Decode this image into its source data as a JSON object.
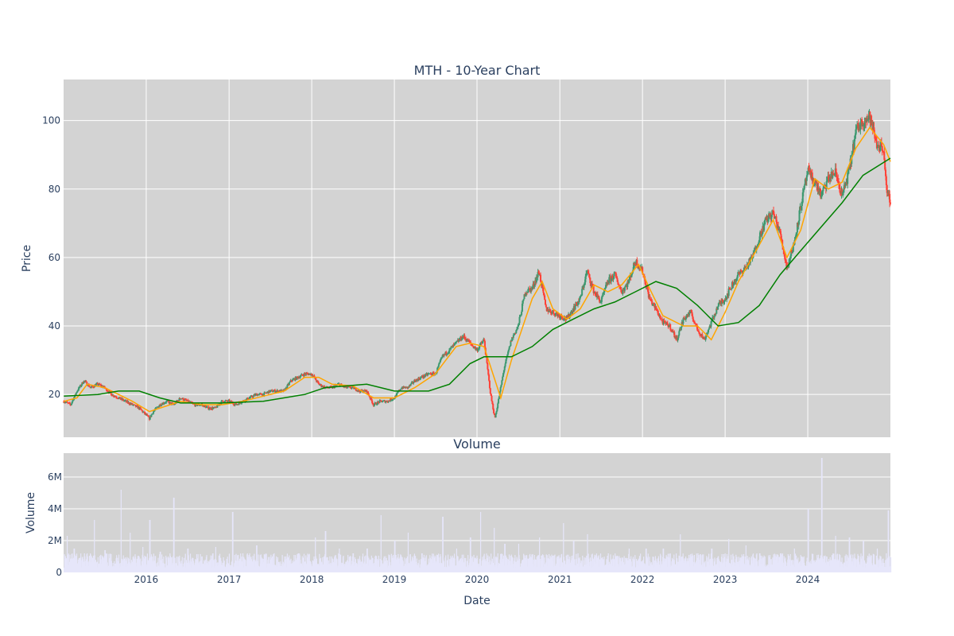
{
  "chart_data": [
    {
      "type": "candlestick",
      "title": "MTH - 10-Year Chart",
      "xlabel": "",
      "ylabel": "Price",
      "x_range": [
        "2015-01-01",
        "2024-12-31"
      ],
      "ylim": [
        7.5,
        112
      ],
      "y_ticks": [
        20,
        40,
        60,
        80,
        100
      ],
      "x_ticks": [
        "2016-01-01",
        "2017-01-01",
        "2018-01-01",
        "2019-01-01",
        "2020-01-01",
        "2021-01-01",
        "2022-01-01",
        "2023-01-01",
        "2024-01-01"
      ],
      "grid": true,
      "background": "#d3d3d3",
      "up_color": "#3d9970",
      "down_color": "#ff4136",
      "close_approx": [
        [
          "2015-01-02",
          18
        ],
        [
          "2015-02-01",
          17
        ],
        [
          "2015-03-01",
          21
        ],
        [
          "2015-04-01",
          24
        ],
        [
          "2015-05-01",
          22
        ],
        [
          "2015-06-01",
          23
        ],
        [
          "2015-07-01",
          22
        ],
        [
          "2015-08-01",
          20
        ],
        [
          "2015-09-01",
          19
        ],
        [
          "2015-10-01",
          18
        ],
        [
          "2015-11-01",
          17
        ],
        [
          "2015-12-01",
          16
        ],
        [
          "2016-01-15",
          13
        ],
        [
          "2016-02-01",
          15
        ],
        [
          "2016-03-01",
          17
        ],
        [
          "2016-04-01",
          18
        ],
        [
          "2016-05-01",
          17
        ],
        [
          "2016-06-01",
          19
        ],
        [
          "2016-07-01",
          18
        ],
        [
          "2016-08-01",
          17
        ],
        [
          "2016-09-01",
          17
        ],
        [
          "2016-10-01",
          16
        ],
        [
          "2016-11-01",
          16
        ],
        [
          "2016-12-01",
          18
        ],
        [
          "2017-01-01",
          18
        ],
        [
          "2017-02-01",
          17
        ],
        [
          "2017-03-01",
          18
        ],
        [
          "2017-04-01",
          19
        ],
        [
          "2017-05-01",
          20
        ],
        [
          "2017-06-01",
          20
        ],
        [
          "2017-07-01",
          21
        ],
        [
          "2017-08-01",
          21
        ],
        [
          "2017-09-01",
          21
        ],
        [
          "2017-10-01",
          24
        ],
        [
          "2017-11-01",
          25
        ],
        [
          "2017-12-01",
          26
        ],
        [
          "2018-01-01",
          26
        ],
        [
          "2018-02-01",
          23
        ],
        [
          "2018-03-01",
          22
        ],
        [
          "2018-04-01",
          22
        ],
        [
          "2018-05-01",
          23
        ],
        [
          "2018-06-01",
          22
        ],
        [
          "2018-07-01",
          22
        ],
        [
          "2018-08-01",
          21
        ],
        [
          "2018-09-01",
          21
        ],
        [
          "2018-10-01",
          17
        ],
        [
          "2018-11-01",
          18
        ],
        [
          "2018-12-01",
          18
        ],
        [
          "2019-01-01",
          19
        ],
        [
          "2019-02-01",
          22
        ],
        [
          "2019-03-01",
          22
        ],
        [
          "2019-04-01",
          24
        ],
        [
          "2019-05-01",
          25
        ],
        [
          "2019-06-01",
          26
        ],
        [
          "2019-07-01",
          26
        ],
        [
          "2019-08-01",
          31
        ],
        [
          "2019-09-01",
          33
        ],
        [
          "2019-10-01",
          35
        ],
        [
          "2019-11-01",
          37
        ],
        [
          "2019-12-01",
          35
        ],
        [
          "2020-01-01",
          33
        ],
        [
          "2020-02-01",
          36
        ],
        [
          "2020-03-01",
          20
        ],
        [
          "2020-03-20",
          13
        ],
        [
          "2020-04-01",
          17
        ],
        [
          "2020-05-01",
          28
        ],
        [
          "2020-06-01",
          36
        ],
        [
          "2020-07-01",
          40
        ],
        [
          "2020-08-01",
          50
        ],
        [
          "2020-09-01",
          51
        ],
        [
          "2020-10-01",
          56
        ],
        [
          "2020-11-01",
          45
        ],
        [
          "2020-12-01",
          44
        ],
        [
          "2021-01-01",
          43
        ],
        [
          "2021-02-01",
          42
        ],
        [
          "2021-03-01",
          45
        ],
        [
          "2021-04-01",
          48
        ],
        [
          "2021-05-01",
          56
        ],
        [
          "2021-06-01",
          50
        ],
        [
          "2021-07-01",
          47
        ],
        [
          "2021-08-01",
          53
        ],
        [
          "2021-09-01",
          55
        ],
        [
          "2021-10-01",
          50
        ],
        [
          "2021-11-01",
          53
        ],
        [
          "2021-12-01",
          59
        ],
        [
          "2022-01-01",
          56
        ],
        [
          "2022-02-01",
          48
        ],
        [
          "2022-03-01",
          45
        ],
        [
          "2022-04-01",
          41
        ],
        [
          "2022-05-01",
          40
        ],
        [
          "2022-06-01",
          36
        ],
        [
          "2022-07-01",
          42
        ],
        [
          "2022-08-01",
          44
        ],
        [
          "2022-09-01",
          39
        ],
        [
          "2022-10-01",
          36
        ],
        [
          "2022-11-01",
          41
        ],
        [
          "2022-12-01",
          46
        ],
        [
          "2023-01-01",
          48
        ],
        [
          "2023-02-01",
          52
        ],
        [
          "2023-03-01",
          55
        ],
        [
          "2023-04-01",
          57
        ],
        [
          "2023-05-01",
          60
        ],
        [
          "2023-06-01",
          66
        ],
        [
          "2023-07-01",
          71
        ],
        [
          "2023-08-01",
          73
        ],
        [
          "2023-09-01",
          67
        ],
        [
          "2023-10-01",
          57
        ],
        [
          "2023-11-01",
          64
        ],
        [
          "2023-12-01",
          75
        ],
        [
          "2024-01-01",
          85
        ],
        [
          "2024-02-01",
          82
        ],
        [
          "2024-03-01",
          78
        ],
        [
          "2024-04-01",
          83
        ],
        [
          "2024-05-01",
          85
        ],
        [
          "2024-06-01",
          78
        ],
        [
          "2024-07-01",
          85
        ],
        [
          "2024-08-01",
          97
        ],
        [
          "2024-09-01",
          100
        ],
        [
          "2024-10-01",
          101
        ],
        [
          "2024-11-01",
          93
        ],
        [
          "2024-12-01",
          92
        ],
        [
          "2024-12-15",
          78
        ],
        [
          "2024-12-31",
          77
        ]
      ],
      "overlays": [
        {
          "kind": "moving_average_short",
          "color": "#ffa500",
          "values": [
            [
              "2015-01-02",
              18
            ],
            [
              "2015-03-01",
              19
            ],
            [
              "2015-04-15",
              23
            ],
            [
              "2015-07-01",
              22
            ],
            [
              "2015-09-01",
              20
            ],
            [
              "2015-11-01",
              18
            ],
            [
              "2016-01-15",
              15
            ],
            [
              "2016-03-01",
              16
            ],
            [
              "2016-06-01",
              18
            ],
            [
              "2016-09-01",
              17
            ],
            [
              "2016-12-01",
              17
            ],
            [
              "2017-03-01",
              18
            ],
            [
              "2017-06-01",
              19.5
            ],
            [
              "2017-09-01",
              21
            ],
            [
              "2017-12-01",
              25
            ],
            [
              "2018-02-01",
              25
            ],
            [
              "2018-04-01",
              23
            ],
            [
              "2018-07-01",
              22.5
            ],
            [
              "2018-10-01",
              19
            ],
            [
              "2019-01-01",
              19
            ],
            [
              "2019-04-01",
              22
            ],
            [
              "2019-07-01",
              26
            ],
            [
              "2019-10-01",
              34
            ],
            [
              "2019-12-01",
              35
            ],
            [
              "2020-02-01",
              34
            ],
            [
              "2020-04-15",
              19
            ],
            [
              "2020-06-01",
              30
            ],
            [
              "2020-09-01",
              48
            ],
            [
              "2020-10-15",
              53
            ],
            [
              "2020-12-01",
              45
            ],
            [
              "2021-02-01",
              42
            ],
            [
              "2021-04-01",
              45
            ],
            [
              "2021-06-01",
              52
            ],
            [
              "2021-08-01",
              50
            ],
            [
              "2021-10-01",
              52
            ],
            [
              "2021-12-15",
              58
            ],
            [
              "2022-02-01",
              51
            ],
            [
              "2022-04-01",
              43
            ],
            [
              "2022-07-01",
              40
            ],
            [
              "2022-09-01",
              40
            ],
            [
              "2022-11-01",
              36
            ],
            [
              "2023-01-01",
              44
            ],
            [
              "2023-03-01",
              53
            ],
            [
              "2023-05-01",
              60
            ],
            [
              "2023-08-01",
              71
            ],
            [
              "2023-10-01",
              60
            ],
            [
              "2023-12-01",
              68
            ],
            [
              "2024-02-01",
              83
            ],
            [
              "2024-04-01",
              80
            ],
            [
              "2024-06-01",
              82
            ],
            [
              "2024-08-01",
              92
            ],
            [
              "2024-10-01",
              98
            ],
            [
              "2024-12-01",
              93
            ],
            [
              "2024-12-31",
              88
            ]
          ]
        },
        {
          "kind": "moving_average_long",
          "color": "#008000",
          "values": [
            [
              "2015-01-02",
              19.5
            ],
            [
              "2015-06-01",
              20
            ],
            [
              "2015-09-01",
              21
            ],
            [
              "2015-12-01",
              21
            ],
            [
              "2016-03-01",
              19
            ],
            [
              "2016-06-01",
              17.5
            ],
            [
              "2016-12-01",
              17.5
            ],
            [
              "2017-06-01",
              18
            ],
            [
              "2017-12-01",
              20
            ],
            [
              "2018-03-01",
              22
            ],
            [
              "2018-09-01",
              23
            ],
            [
              "2019-01-01",
              21
            ],
            [
              "2019-06-01",
              21
            ],
            [
              "2019-09-01",
              23
            ],
            [
              "2019-12-01",
              29
            ],
            [
              "2020-02-01",
              31
            ],
            [
              "2020-06-01",
              31
            ],
            [
              "2020-09-01",
              34
            ],
            [
              "2020-12-01",
              39
            ],
            [
              "2021-03-01",
              42
            ],
            [
              "2021-06-01",
              45
            ],
            [
              "2021-09-01",
              47
            ],
            [
              "2021-12-01",
              50
            ],
            [
              "2022-03-01",
              53
            ],
            [
              "2022-06-01",
              51
            ],
            [
              "2022-09-01",
              46
            ],
            [
              "2022-12-01",
              40
            ],
            [
              "2023-03-01",
              41
            ],
            [
              "2023-06-01",
              46
            ],
            [
              "2023-09-01",
              55
            ],
            [
              "2023-12-01",
              62
            ],
            [
              "2024-03-01",
              69
            ],
            [
              "2024-06-01",
              76
            ],
            [
              "2024-09-01",
              84
            ],
            [
              "2024-12-31",
              89
            ]
          ]
        }
      ]
    },
    {
      "type": "bar",
      "title": "Volume",
      "xlabel": "Date",
      "ylabel": "Volume",
      "ylim": [
        0,
        7500000
      ],
      "y_ticks": [
        0,
        2000000,
        4000000,
        6000000
      ],
      "y_tick_labels": [
        "0",
        "2M",
        "4M",
        "6M"
      ],
      "x_tick_labels": [
        "2016",
        "2017",
        "2018",
        "2019",
        "2020",
        "2021",
        "2022",
        "2023",
        "2024"
      ],
      "bar_color": "#e6e6fa",
      "background": "#d3d3d3",
      "grid": true,
      "values_approx": [
        [
          "2015-01-15",
          2300000
        ],
        [
          "2015-02-15",
          1500000
        ],
        [
          "2015-04-01",
          1200000
        ],
        [
          "2015-05-15",
          3300000
        ],
        [
          "2015-07-01",
          1400000
        ],
        [
          "2015-09-10",
          5200000
        ],
        [
          "2015-10-20",
          2500000
        ],
        [
          "2015-12-15",
          1600000
        ],
        [
          "2016-01-15",
          3300000
        ],
        [
          "2016-03-01",
          1300000
        ],
        [
          "2016-04-30",
          4700000
        ],
        [
          "2016-07-01",
          1500000
        ],
        [
          "2016-09-01",
          1000000
        ],
        [
          "2016-11-01",
          1600000
        ],
        [
          "2017-01-15",
          3800000
        ],
        [
          "2017-03-01",
          1200000
        ],
        [
          "2017-05-01",
          1700000
        ],
        [
          "2017-07-01",
          800000
        ],
        [
          "2017-09-01",
          1000000
        ],
        [
          "2017-11-01",
          1200000
        ],
        [
          "2018-01-15",
          2200000
        ],
        [
          "2018-03-01",
          2600000
        ],
        [
          "2018-05-01",
          1500000
        ],
        [
          "2018-07-01",
          1200000
        ],
        [
          "2018-09-01",
          1500000
        ],
        [
          "2018-11-01",
          3600000
        ],
        [
          "2019-01-01",
          2000000
        ],
        [
          "2019-03-01",
          2500000
        ],
        [
          "2019-05-01",
          1200000
        ],
        [
          "2019-08-01",
          3500000
        ],
        [
          "2019-10-01",
          1500000
        ],
        [
          "2019-12-01",
          2200000
        ],
        [
          "2020-01-15",
          3800000
        ],
        [
          "2020-03-15",
          2800000
        ],
        [
          "2020-05-01",
          1800000
        ],
        [
          "2020-07-01",
          1800000
        ],
        [
          "2020-10-01",
          2200000
        ],
        [
          "2021-01-15",
          3100000
        ],
        [
          "2021-03-01",
          2000000
        ],
        [
          "2021-05-01",
          2400000
        ],
        [
          "2021-08-01",
          1200000
        ],
        [
          "2021-11-01",
          1500000
        ],
        [
          "2022-01-15",
          1500000
        ],
        [
          "2022-04-01",
          1500000
        ],
        [
          "2022-06-15",
          2400000
        ],
        [
          "2022-09-01",
          1200000
        ],
        [
          "2022-11-01",
          1500000
        ],
        [
          "2023-01-15",
          2100000
        ],
        [
          "2023-04-01",
          1700000
        ],
        [
          "2023-06-01",
          1200000
        ],
        [
          "2023-09-01",
          1200000
        ],
        [
          "2023-11-01",
          1500000
        ],
        [
          "2024-01-01",
          4000000
        ],
        [
          "2024-03-01",
          7200000
        ],
        [
          "2024-05-01",
          2300000
        ],
        [
          "2024-07-01",
          2200000
        ],
        [
          "2024-09-01",
          2000000
        ],
        [
          "2024-11-01",
          1500000
        ],
        [
          "2024-12-20",
          3900000
        ]
      ]
    }
  ]
}
